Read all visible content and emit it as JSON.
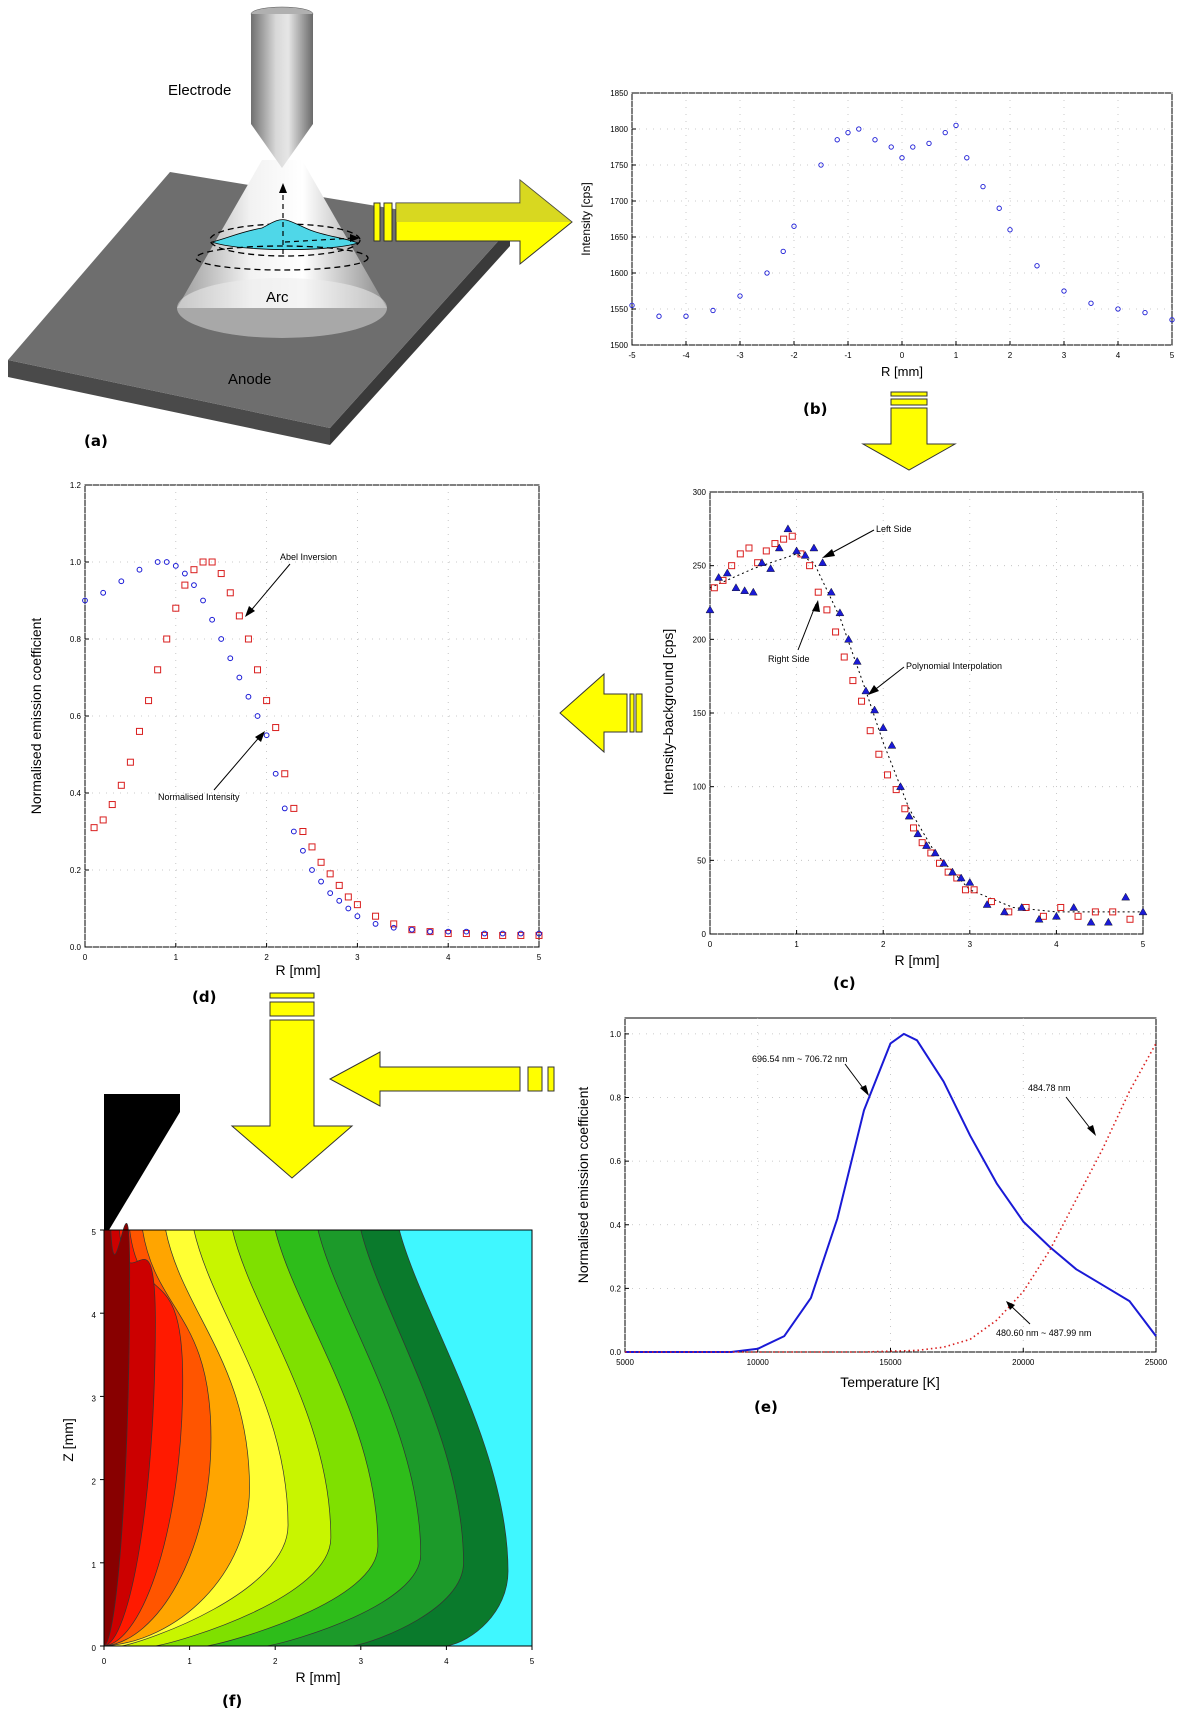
{
  "colors": {
    "blue": "#1a1ad6",
    "red": "#d91e1e",
    "arrow_yellow": "#ffff00",
    "arrow_dim": "#b8b83a",
    "plate_top": "#6b6b6b",
    "plate_side": "#4a4a4a",
    "plasma": "#4fd7e8",
    "cyan": "#3ff7ff"
  },
  "panel_a": {
    "electrode": "Electrode",
    "arc": "Arc",
    "anode": "Anode",
    "caption": "(a)"
  },
  "panel_b": {
    "caption": "(b)",
    "xlabel": "R [mm]",
    "ylabel": "Intensity [cps]",
    "xticks": [
      "-5",
      "-4",
      "-3",
      "-2",
      "-1",
      "0",
      "1",
      "2",
      "3",
      "4",
      "5"
    ],
    "yticks": [
      "1500",
      "1550",
      "1600",
      "1650",
      "1700",
      "1750",
      "1800",
      "1850"
    ]
  },
  "panel_c": {
    "caption": "(c)",
    "xlabel": "R [mm]",
    "ylabel": "Intensity–background [cps]",
    "xticks": [
      "0",
      "1",
      "2",
      "3",
      "4",
      "5"
    ],
    "yticks": [
      "0",
      "50",
      "100",
      "150",
      "200",
      "250",
      "300"
    ],
    "ann_left": "Left Side",
    "ann_right": "Right Side",
    "ann_poly": "Polynomial Interpolation"
  },
  "panel_d": {
    "caption": "(d)",
    "xlabel": "R [mm]",
    "ylabel": "Normalised emission coefficient",
    "xticks": [
      "0",
      "1",
      "2",
      "3",
      "4",
      "5"
    ],
    "yticks": [
      "0.0",
      "0.2",
      "0.4",
      "0.6",
      "0.8",
      "1.0",
      "1.2"
    ],
    "ann_abel": "Abel Inversion",
    "ann_norm": "Normalised Intensity"
  },
  "panel_e": {
    "caption": "(e)",
    "xlabel": "Temperature [K]",
    "ylabel": "Normalised emission coefficient",
    "xticks": [
      "5000",
      "10000",
      "15000",
      "20000",
      "25000"
    ],
    "yticks": [
      "0.0",
      "0.2",
      "0.4",
      "0.6",
      "0.8",
      "1.0"
    ],
    "ann1": "696.54 nm ~ 706.72 nm",
    "ann2": "484.78 nm",
    "ann3": "480.60 nm ~ 487.99 nm"
  },
  "panel_f": {
    "caption": "(f)",
    "xlabel": "R [mm]",
    "ylabel": "Z [mm]",
    "xticks": [
      "0",
      "1",
      "2",
      "3",
      "4",
      "5"
    ],
    "yticks": [
      "0",
      "1",
      "2",
      "3",
      "4",
      "5"
    ],
    "levels": [
      "#3ff7ff",
      "#0a7a2c",
      "#1c9a2a",
      "#2ebd1a",
      "#7fe000",
      "#c8f500",
      "#ffff33",
      "#ffa500",
      "#ff5500",
      "#ff1a00",
      "#cc0000",
      "#880000"
    ]
  },
  "chart_data": [
    {
      "panel": "(b)",
      "type": "scatter",
      "xlabel": "R [mm]",
      "ylabel": "Intensity [cps]",
      "xlim": [
        -5,
        5
      ],
      "ylim": [
        1500,
        1850
      ],
      "x": [
        -5,
        -4.5,
        -4,
        -3.5,
        -3,
        -2.5,
        -2.2,
        -2,
        -1.5,
        -1.2,
        -1,
        -0.8,
        -0.5,
        -0.2,
        0,
        0.2,
        0.5,
        0.8,
        1,
        1.2,
        1.5,
        1.8,
        2,
        2.5,
        3,
        3.5,
        4,
        4.5,
        5
      ],
      "y": [
        1555,
        1540,
        1540,
        1548,
        1568,
        1600,
        1630,
        1665,
        1750,
        1785,
        1795,
        1800,
        1785,
        1775,
        1760,
        1775,
        1780,
        1795,
        1805,
        1760,
        1720,
        1690,
        1660,
        1610,
        1575,
        1558,
        1550,
        1545,
        1535
      ]
    },
    {
      "panel": "(c)",
      "type": "scatter",
      "xlabel": "R [mm]",
      "ylabel": "Intensity–background [cps]",
      "xlim": [
        0,
        5
      ],
      "ylim": [
        0,
        300
      ],
      "series": [
        {
          "name": "Left Side",
          "marker": "triangle",
          "x": [
            0,
            0.1,
            0.2,
            0.3,
            0.4,
            0.5,
            0.6,
            0.7,
            0.8,
            0.9,
            1.0,
            1.1,
            1.2,
            1.3,
            1.4,
            1.5,
            1.6,
            1.7,
            1.8,
            1.9,
            2.0,
            2.1,
            2.2,
            2.3,
            2.4,
            2.5,
            2.6,
            2.7,
            2.8,
            2.9,
            3.0,
            3.2,
            3.4,
            3.6,
            3.8,
            4.0,
            4.2,
            4.4,
            4.6,
            4.8,
            5.0
          ],
          "y": [
            220,
            242,
            245,
            235,
            233,
            232,
            252,
            248,
            262,
            275,
            260,
            257,
            262,
            252,
            232,
            218,
            200,
            185,
            165,
            152,
            140,
            128,
            100,
            80,
            68,
            60,
            55,
            48,
            42,
            38,
            35,
            20,
            15,
            18,
            10,
            12,
            18,
            8,
            8,
            25,
            15
          ]
        },
        {
          "name": "Right Side",
          "marker": "square",
          "x": [
            0.05,
            0.15,
            0.25,
            0.35,
            0.45,
            0.55,
            0.65,
            0.75,
            0.85,
            0.95,
            1.05,
            1.15,
            1.25,
            1.35,
            1.45,
            1.55,
            1.65,
            1.75,
            1.85,
            1.95,
            2.05,
            2.15,
            2.25,
            2.35,
            2.45,
            2.55,
            2.65,
            2.75,
            2.85,
            2.95,
            3.05,
            3.25,
            3.45,
            3.65,
            3.85,
            4.05,
            4.25,
            4.45,
            4.65,
            4.85
          ],
          "y": [
            235,
            240,
            250,
            258,
            262,
            252,
            260,
            265,
            268,
            270,
            258,
            250,
            232,
            220,
            205,
            188,
            172,
            158,
            138,
            122,
            108,
            98,
            85,
            72,
            62,
            55,
            48,
            42,
            38,
            30,
            30,
            22,
            15,
            18,
            12,
            18,
            12,
            15,
            15,
            10
          ]
        },
        {
          "name": "Polynomial Interpolation",
          "marker": "dotted-line",
          "x": [
            0,
            0.5,
            1.0,
            1.2,
            1.5,
            1.8,
            2.0,
            2.3,
            2.6,
            3.0,
            3.5,
            4.0,
            4.5,
            5.0
          ],
          "y": [
            235,
            248,
            258,
            252,
            215,
            165,
            130,
            85,
            55,
            30,
            18,
            15,
            15,
            15
          ]
        }
      ]
    },
    {
      "panel": "(d)",
      "type": "scatter",
      "xlabel": "R [mm]",
      "ylabel": "Normalised emission coefficient",
      "xlim": [
        0,
        5
      ],
      "ylim": [
        0,
        1.2
      ],
      "series": [
        {
          "name": "Normalised Intensity",
          "marker": "circle",
          "x": [
            0,
            0.2,
            0.4,
            0.6,
            0.8,
            0.9,
            1.0,
            1.1,
            1.2,
            1.3,
            1.4,
            1.5,
            1.6,
            1.7,
            1.8,
            1.9,
            2.0,
            2.1,
            2.2,
            2.3,
            2.4,
            2.5,
            2.6,
            2.7,
            2.8,
            2.9,
            3.0,
            3.2,
            3.4,
            3.6,
            3.8,
            4.0,
            4.2,
            4.4,
            4.6,
            4.8,
            5.0
          ],
          "y": [
            0.9,
            0.92,
            0.95,
            0.98,
            1.0,
            1.0,
            0.99,
            0.97,
            0.94,
            0.9,
            0.85,
            0.8,
            0.75,
            0.7,
            0.65,
            0.6,
            0.55,
            0.45,
            0.36,
            0.3,
            0.25,
            0.2,
            0.17,
            0.14,
            0.12,
            0.1,
            0.08,
            0.06,
            0.05,
            0.045,
            0.04,
            0.04,
            0.04,
            0.035,
            0.035,
            0.035,
            0.035
          ]
        },
        {
          "name": "Abel Inversion",
          "marker": "square",
          "x": [
            0.1,
            0.2,
            0.3,
            0.4,
            0.5,
            0.6,
            0.7,
            0.8,
            0.9,
            1.0,
            1.1,
            1.2,
            1.3,
            1.4,
            1.5,
            1.6,
            1.7,
            1.8,
            1.9,
            2.0,
            2.1,
            2.2,
            2.3,
            2.4,
            2.5,
            2.6,
            2.7,
            2.8,
            2.9,
            3.0,
            3.2,
            3.4,
            3.6,
            3.8,
            4.0,
            4.2,
            4.4,
            4.6,
            4.8,
            5.0
          ],
          "y": [
            0.31,
            0.33,
            0.37,
            0.42,
            0.48,
            0.56,
            0.64,
            0.72,
            0.8,
            0.88,
            0.94,
            0.98,
            1.0,
            1.0,
            0.97,
            0.92,
            0.86,
            0.8,
            0.72,
            0.64,
            0.57,
            0.45,
            0.36,
            0.3,
            0.26,
            0.22,
            0.19,
            0.16,
            0.13,
            0.11,
            0.08,
            0.06,
            0.045,
            0.04,
            0.035,
            0.035,
            0.03,
            0.03,
            0.03,
            0.03
          ]
        }
      ]
    },
    {
      "panel": "(e)",
      "type": "line",
      "xlabel": "Temperature [K]",
      "ylabel": "Normalised emission coefficient",
      "xlim": [
        5000,
        25000
      ],
      "ylim": [
        0,
        1.05
      ],
      "series": [
        {
          "name": "696.54 nm ~ 706.72 nm",
          "style": "solid",
          "x": [
            5000,
            8000,
            9000,
            10000,
            11000,
            12000,
            13000,
            14000,
            15000,
            15500,
            16000,
            17000,
            18000,
            19000,
            20000,
            21000,
            22000,
            23000,
            24000,
            25000
          ],
          "y": [
            0.0,
            0.0,
            0.0,
            0.01,
            0.05,
            0.17,
            0.42,
            0.76,
            0.97,
            1.0,
            0.98,
            0.85,
            0.68,
            0.53,
            0.41,
            0.33,
            0.26,
            0.21,
            0.16,
            0.05
          ]
        },
        {
          "name": "480.60 nm ~ 487.99 nm",
          "style": "dotted",
          "x": [
            5000,
            14000,
            16000,
            17000,
            18000,
            19000,
            20000,
            21000,
            22000,
            23000,
            24000,
            25000
          ],
          "y": [
            0.0,
            0.0,
            0.005,
            0.015,
            0.04,
            0.1,
            0.19,
            0.32,
            0.48,
            0.64,
            0.82,
            0.97
          ]
        }
      ]
    },
    {
      "panel": "(f)",
      "type": "heatmap",
      "xlabel": "R [mm]",
      "ylabel": "Z [mm]",
      "xlim": [
        0,
        5
      ],
      "ylim": [
        0,
        5
      ],
      "levels": 12
    }
  ]
}
